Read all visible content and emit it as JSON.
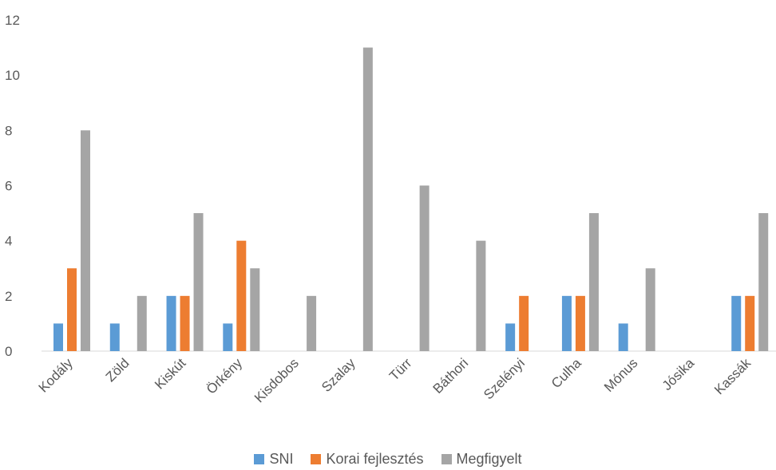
{
  "chart_data": {
    "type": "bar",
    "categories": [
      "Kodály",
      "Zöld",
      "Kiskút",
      "Örkény",
      "Kisdobos",
      "Szalay",
      "Türr",
      "Báthori",
      "Szelényi",
      "Culha",
      "Mónus",
      "Jósika",
      "Kassák"
    ],
    "series": [
      {
        "name": "SNI",
        "color": "#5b9bd5",
        "values": [
          1,
          1,
          2,
          1,
          0,
          0,
          0,
          0,
          1,
          2,
          1,
          0,
          2
        ]
      },
      {
        "name": "Korai fejlesztés",
        "color": "#ed7d31",
        "values": [
          3,
          0,
          2,
          4,
          0,
          0,
          0,
          0,
          2,
          2,
          0,
          0,
          2
        ]
      },
      {
        "name": "Megfigyelt",
        "color": "#a5a5a5",
        "values": [
          8,
          2,
          5,
          3,
          2,
          11,
          6,
          4,
          0,
          5,
          3,
          0,
          5
        ]
      }
    ],
    "yticks": [
      0,
      2,
      4,
      6,
      8,
      10,
      12
    ],
    "ylim": [
      0,
      12
    ],
    "grid": false,
    "legend_position": "bottom"
  }
}
